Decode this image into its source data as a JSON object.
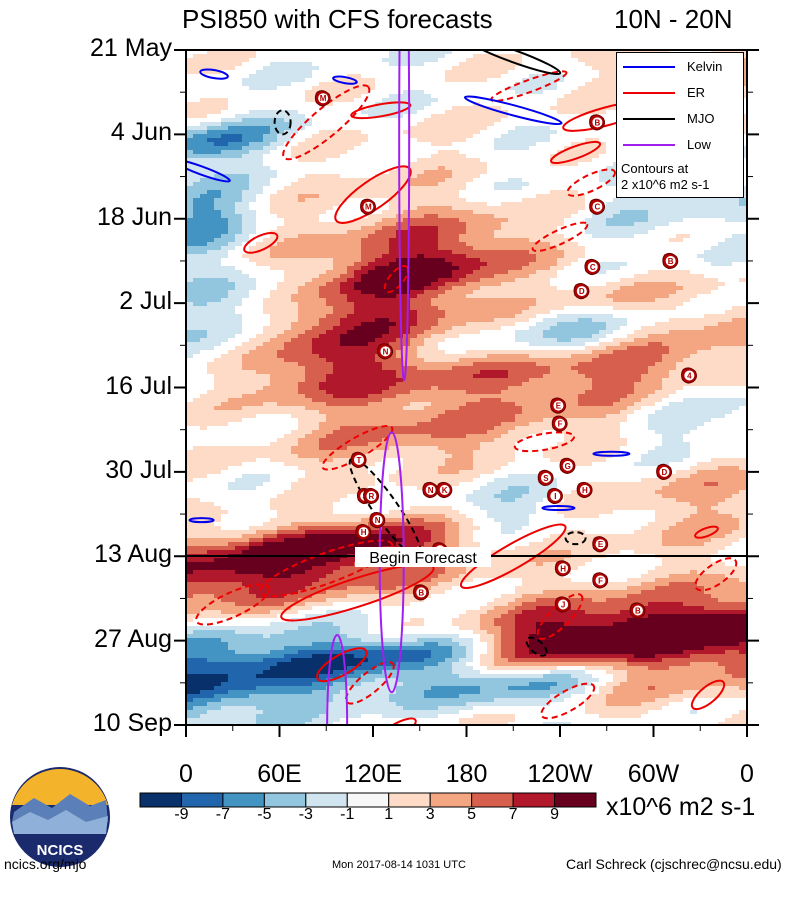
{
  "header": {
    "title": "PSI850 with CFS forecasts",
    "region": "10N - 20N"
  },
  "chart_data": {
    "type": "heatmap",
    "title": "PSI850 with CFS forecasts",
    "subtitle": "10N - 20N",
    "x_ticks": [
      "0",
      "60E",
      "120E",
      "180",
      "120W",
      "60W",
      "0"
    ],
    "y_ticks": [
      "21 May",
      "4 Jun",
      "18 Jun",
      "2 Jul",
      "16 Jul",
      "30 Jul",
      "13 Aug",
      "27 Aug",
      "10 Sep"
    ],
    "forecast_label": "Begin Forecast",
    "colorbar": {
      "ticks": [
        "-9",
        "-7",
        "-5",
        "-3",
        "-1",
        "1",
        "3",
        "5",
        "7",
        "9"
      ],
      "units": "x10^6 m2 s-1",
      "colors": [
        "#08306b",
        "#2166ac",
        "#4393c3",
        "#92c5de",
        "#d1e5f0",
        "#f7f7f7",
        "#fddbc7",
        "#f4a582",
        "#d6604d",
        "#b2182b",
        "#67001f"
      ]
    },
    "legend": {
      "entries": [
        {
          "label": "Kelvin",
          "color": "#0000ee"
        },
        {
          "label": "ER",
          "color": "#ee0000"
        },
        {
          "label": "MJO",
          "color": "#000000"
        },
        {
          "label": "Low",
          "color": "#a020f0"
        }
      ],
      "note_line1": "Contours at",
      "note_line2": "2 x10^6 m2 s-1"
    },
    "storm_markers": [
      {
        "letter": "M",
        "lon": 88,
        "day": 8
      },
      {
        "letter": "B",
        "lon": 264,
        "day": 12
      },
      {
        "letter": "M",
        "lon": 117,
        "day": 26
      },
      {
        "letter": "C",
        "lon": 264,
        "day": 26
      },
      {
        "letter": "B",
        "lon": 311,
        "day": 35
      },
      {
        "letter": "C",
        "lon": 261,
        "day": 36
      },
      {
        "letter": "D",
        "lon": 254,
        "day": 40
      },
      {
        "letter": "N",
        "lon": 128,
        "day": 50
      },
      {
        "letter": "4",
        "lon": 323,
        "day": 54
      },
      {
        "letter": "E",
        "lon": 239,
        "day": 59
      },
      {
        "letter": "F",
        "lon": 240,
        "day": 62
      },
      {
        "letter": "T",
        "lon": 111,
        "day": 68
      },
      {
        "letter": "G",
        "lon": 245,
        "day": 69
      },
      {
        "letter": "D",
        "lon": 307,
        "day": 70
      },
      {
        "letter": "S",
        "lon": 231,
        "day": 71
      },
      {
        "letter": "N",
        "lon": 157,
        "day": 73
      },
      {
        "letter": "K",
        "lon": 166,
        "day": 73
      },
      {
        "letter": "H",
        "lon": 256,
        "day": 73
      },
      {
        "letter": "S",
        "lon": 115,
        "day": 74
      },
      {
        "letter": "R",
        "lon": 119,
        "day": 74
      },
      {
        "letter": "I",
        "lon": 237,
        "day": 74
      },
      {
        "letter": "N",
        "lon": 123,
        "day": 78
      },
      {
        "letter": "H",
        "lon": 114,
        "day": 80
      },
      {
        "letter": "E",
        "lon": 266,
        "day": 82
      },
      {
        "letter": "N",
        "lon": 163,
        "day": 83
      },
      {
        "letter": "H",
        "lon": 242,
        "day": 86
      },
      {
        "letter": "F",
        "lon": 266,
        "day": 88
      },
      {
        "letter": "B",
        "lon": 151,
        "day": 90
      },
      {
        "letter": "J",
        "lon": 242,
        "day": 92
      },
      {
        "letter": "B",
        "lon": 290,
        "day": 93
      }
    ]
  },
  "colorbar_unit_label": "x10^6 m2 s-1",
  "footer": {
    "left": "ncics.org/mjo",
    "center": "Mon 2017-08-14 1031 UTC",
    "right": "Carl Schreck (cjschrec@ncsu.edu)"
  },
  "logo": {
    "text": "NCICS"
  }
}
